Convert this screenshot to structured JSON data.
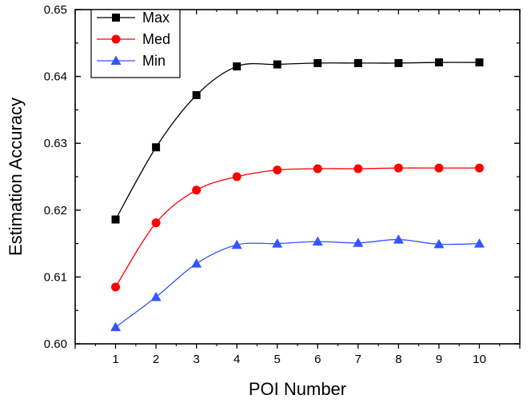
{
  "chart_data": {
    "type": "line",
    "title": "",
    "xlabel": "POI Number",
    "ylabel": "Estimation Accuracy",
    "x": [
      1,
      2,
      3,
      4,
      5,
      6,
      7,
      8,
      9,
      10
    ],
    "xlim": [
      0,
      11
    ],
    "ylim": [
      0.6,
      0.65
    ],
    "x_ticks": [
      "1",
      "2",
      "3",
      "4",
      "5",
      "6",
      "7",
      "8",
      "9",
      "10"
    ],
    "y_ticks": [
      "0.60",
      "0.61",
      "0.62",
      "0.63",
      "0.64",
      "0.65"
    ],
    "grid": false,
    "legend_position": "top-left",
    "series": [
      {
        "name": "Max",
        "color": "#000000",
        "marker": "square",
        "values": [
          0.6186,
          0.6294,
          0.6372,
          0.6415,
          0.6418,
          0.642,
          0.642,
          0.642,
          0.6421,
          0.6421
        ]
      },
      {
        "name": "Med",
        "color": "#ff0000",
        "marker": "circle",
        "values": [
          0.6085,
          0.6181,
          0.623,
          0.625,
          0.626,
          0.6262,
          0.6262,
          0.6263,
          0.6263,
          0.6263
        ]
      },
      {
        "name": "Min",
        "color": "#3355ff",
        "marker": "triangle",
        "values": [
          0.6025,
          0.607,
          0.612,
          0.6148,
          0.615,
          0.6153,
          0.6151,
          0.6156,
          0.6149,
          0.615
        ]
      }
    ]
  }
}
